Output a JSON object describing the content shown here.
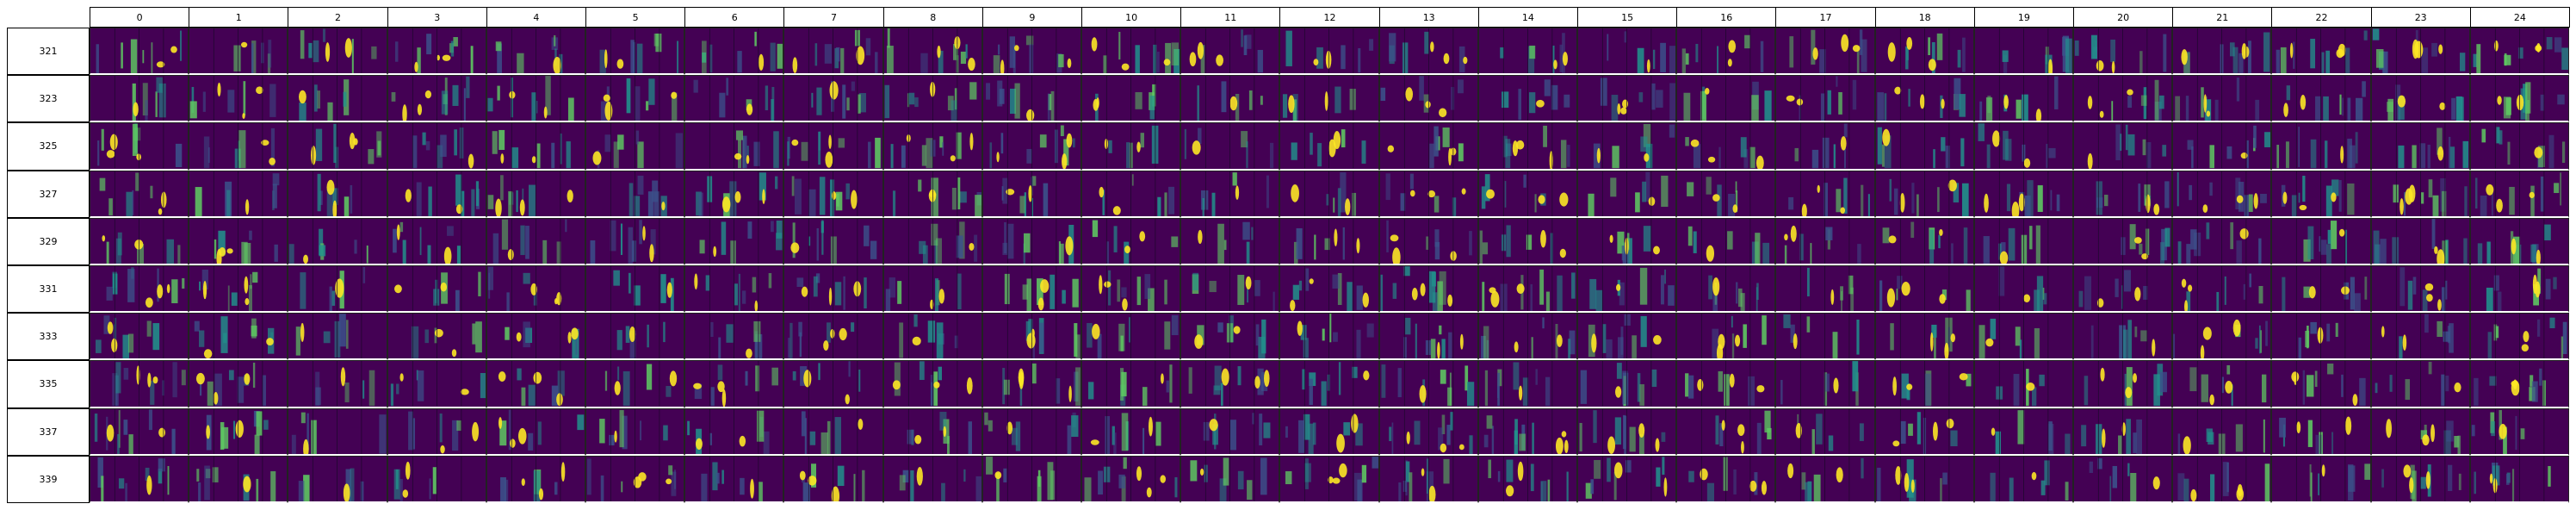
{
  "columns": [
    "0",
    "1",
    "2",
    "3",
    "4",
    "5",
    "6",
    "7",
    "8",
    "9",
    "10",
    "11",
    "12",
    "13",
    "14",
    "15",
    "16",
    "17",
    "18",
    "19",
    "20",
    "21",
    "22",
    "23",
    "24"
  ],
  "rows": [
    "321",
    "323",
    "325",
    "327",
    "329",
    "331",
    "333",
    "335",
    "337",
    "339"
  ],
  "colors": {
    "background": "#440154",
    "cell_mid": "#3b528b",
    "cell_teal": "#21918c",
    "cell_green": "#5ec962",
    "cell_yellow": "#fde725",
    "row_separator": "#ffffff",
    "header_border": "#000000"
  }
}
